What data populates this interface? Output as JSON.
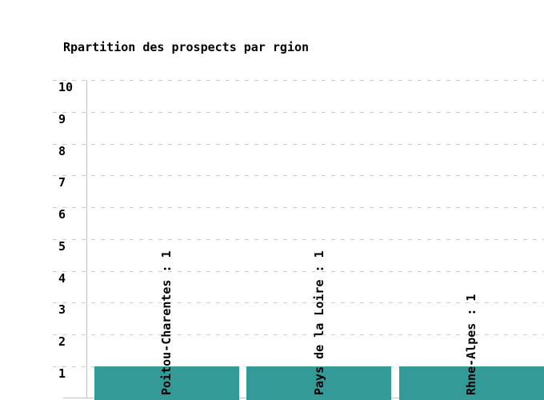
{
  "chart_data": {
    "type": "bar",
    "title": "Rpartition des prospects par rgion",
    "categories": [
      "Poitou-Charentes",
      "Pays de la Loire",
      "Rhne-Alpes"
    ],
    "values": [
      1,
      1,
      1
    ],
    "bar_labels": [
      "Poitou-Charentes : 1",
      "Pays de la Loire : 1",
      "Rhne-Alpes : 1"
    ],
    "y_ticks": [
      10,
      9,
      8,
      7,
      6,
      5,
      4,
      3,
      2,
      1
    ],
    "ylim": [
      0,
      10
    ],
    "xlabel": "",
    "ylabel": "",
    "grid": "horizontal dashed",
    "legend": "none",
    "colors": {
      "bar": "#349a98",
      "grid": "#cccccc",
      "axis": "#c0c0c0",
      "text": "#000000",
      "background": "#ffffff"
    }
  }
}
